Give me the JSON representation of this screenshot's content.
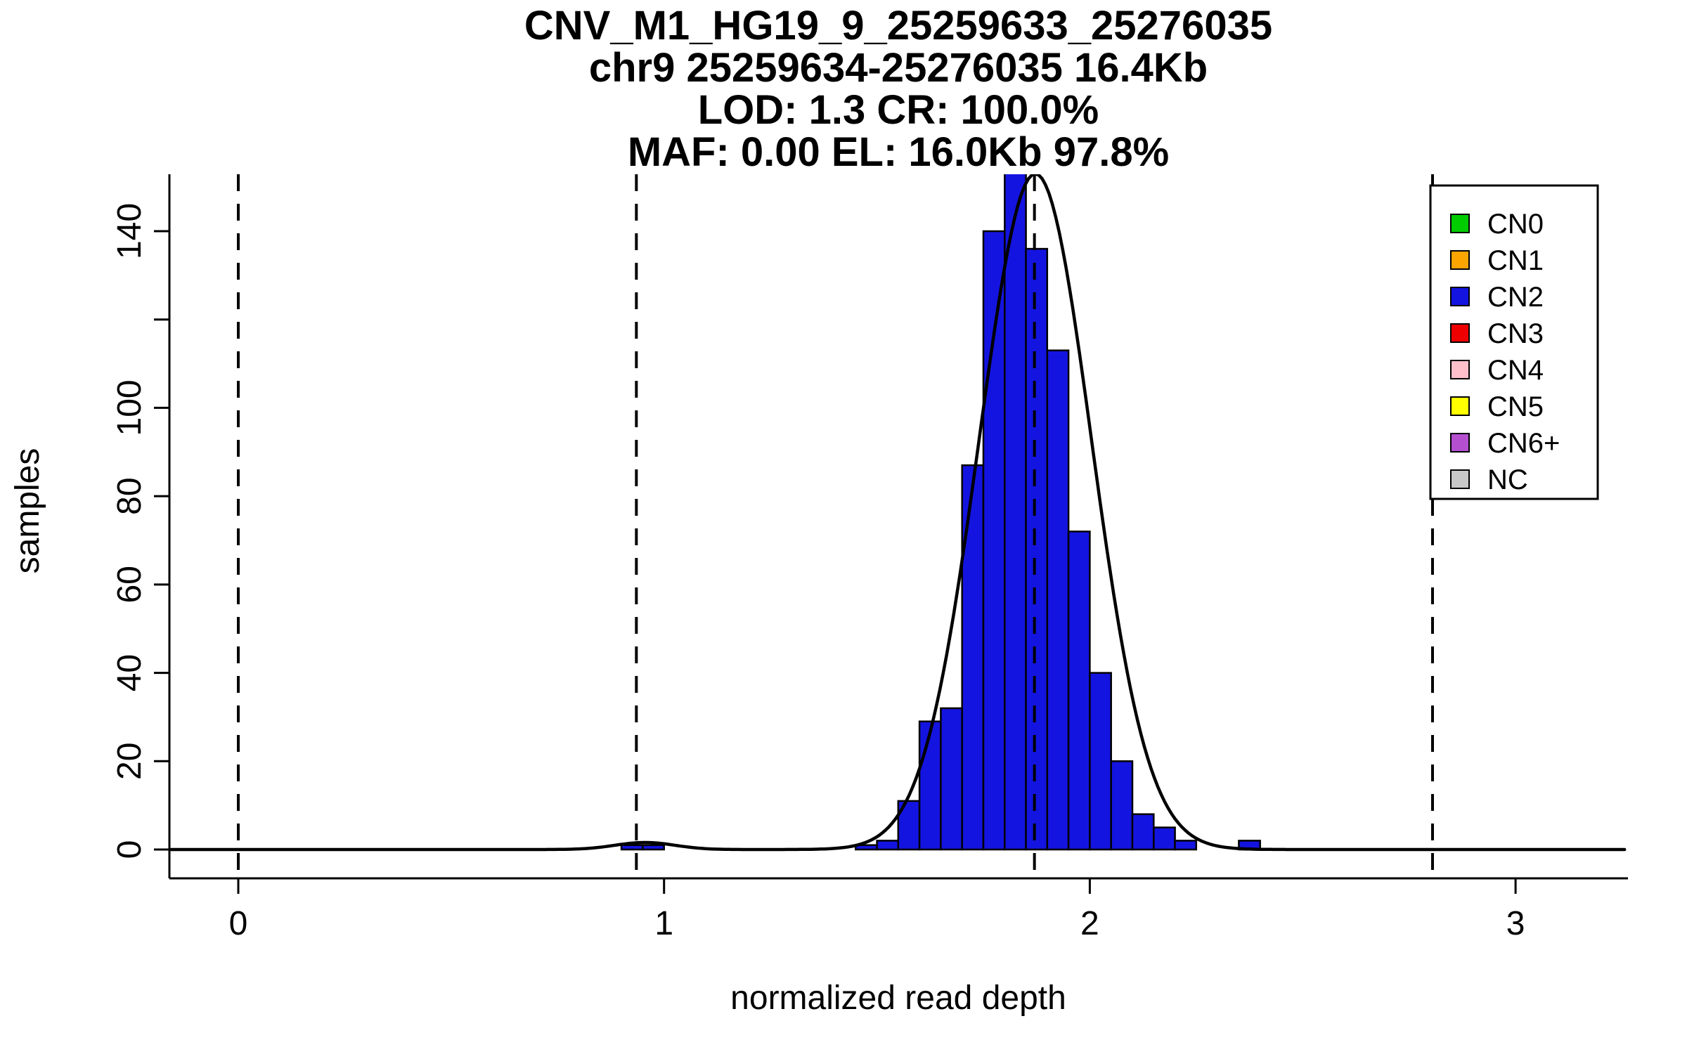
{
  "page": {
    "background": "#FFFFFF"
  },
  "chart_data": {
    "type": "bar",
    "subtype": "histogram_with_gaussian_fit",
    "title_lines": [
      "CNV_M1_HG19_9_25259633_25276035",
      "chr9 25259634-25276035 16.4Kb",
      "LOD: 1.3 CR: 100.0%",
      "MAF: 0.00 EL: 16.0Kb 97.8%"
    ],
    "xlabel": "normalized read depth",
    "ylabel": "samples",
    "x_axis": {
      "range": [
        -0.16,
        3.26
      ],
      "ticks": [
        {
          "value": 0,
          "label": "0"
        },
        {
          "value": 1,
          "label": "1"
        },
        {
          "value": 2,
          "label": "2"
        },
        {
          "value": 3,
          "label": "3"
        }
      ]
    },
    "y_axis": {
      "range": [
        0,
        150
      ],
      "ticks": [
        {
          "value": 0,
          "label": "0"
        },
        {
          "value": 20,
          "label": "20"
        },
        {
          "value": 40,
          "label": "40"
        },
        {
          "value": 60,
          "label": "60"
        },
        {
          "value": 80,
          "label": "80"
        },
        {
          "value": 100,
          "label": "100"
        },
        {
          "value": 120,
          "label": ""
        },
        {
          "value": 140,
          "label": "140"
        }
      ]
    },
    "histogram": {
      "bin_width": 0.05,
      "series_cn": "CN2",
      "color": "#1414E0",
      "bins": [
        {
          "x0": 0.9,
          "count": 1
        },
        {
          "x0": 0.95,
          "count": 1
        },
        {
          "x0": 1.45,
          "count": 1
        },
        {
          "x0": 1.5,
          "count": 2
        },
        {
          "x0": 1.55,
          "count": 11
        },
        {
          "x0": 1.6,
          "count": 29
        },
        {
          "x0": 1.65,
          "count": 32
        },
        {
          "x0": 1.7,
          "count": 87
        },
        {
          "x0": 1.75,
          "count": 140
        },
        {
          "x0": 1.8,
          "count": 155
        },
        {
          "x0": 1.85,
          "count": 136
        },
        {
          "x0": 1.9,
          "count": 113
        },
        {
          "x0": 1.95,
          "count": 72
        },
        {
          "x0": 2.0,
          "count": 40
        },
        {
          "x0": 2.05,
          "count": 20
        },
        {
          "x0": 2.1,
          "count": 8
        },
        {
          "x0": 2.15,
          "count": 5
        },
        {
          "x0": 2.2,
          "count": 2
        },
        {
          "x0": 2.35,
          "count": 2
        }
      ]
    },
    "fit_curve": {
      "color": "#000000",
      "gaussians": [
        {
          "amplitude": 153,
          "mean": 1.872,
          "sd": 0.132
        },
        {
          "amplitude": 1.6,
          "mean": 0.955,
          "sd": 0.07
        }
      ]
    },
    "expected_cn_lines": [
      {
        "cn": "CN0",
        "x": 0.0
      },
      {
        "cn": "CN1",
        "x": 0.935
      },
      {
        "cn": "CN2",
        "x": 1.87
      },
      {
        "cn": "CN3",
        "x": 2.805
      }
    ],
    "legend": {
      "position": "top-right",
      "items": [
        {
          "label": "CN0",
          "color": "#00CC00"
        },
        {
          "label": "CN1",
          "color": "#FFA500"
        },
        {
          "label": "CN2",
          "color": "#1414E0"
        },
        {
          "label": "CN3",
          "color": "#EE0000"
        },
        {
          "label": "CN4",
          "color": "#FFC0CB"
        },
        {
          "label": "CN5",
          "color": "#FFFF00"
        },
        {
          "label": "CN6+",
          "color": "#B450D0"
        },
        {
          "label": "NC",
          "color": "#C8C8C8"
        }
      ]
    },
    "grid": "off",
    "colors": {
      "axis": "#000000",
      "background": "#FFFFFF"
    }
  }
}
